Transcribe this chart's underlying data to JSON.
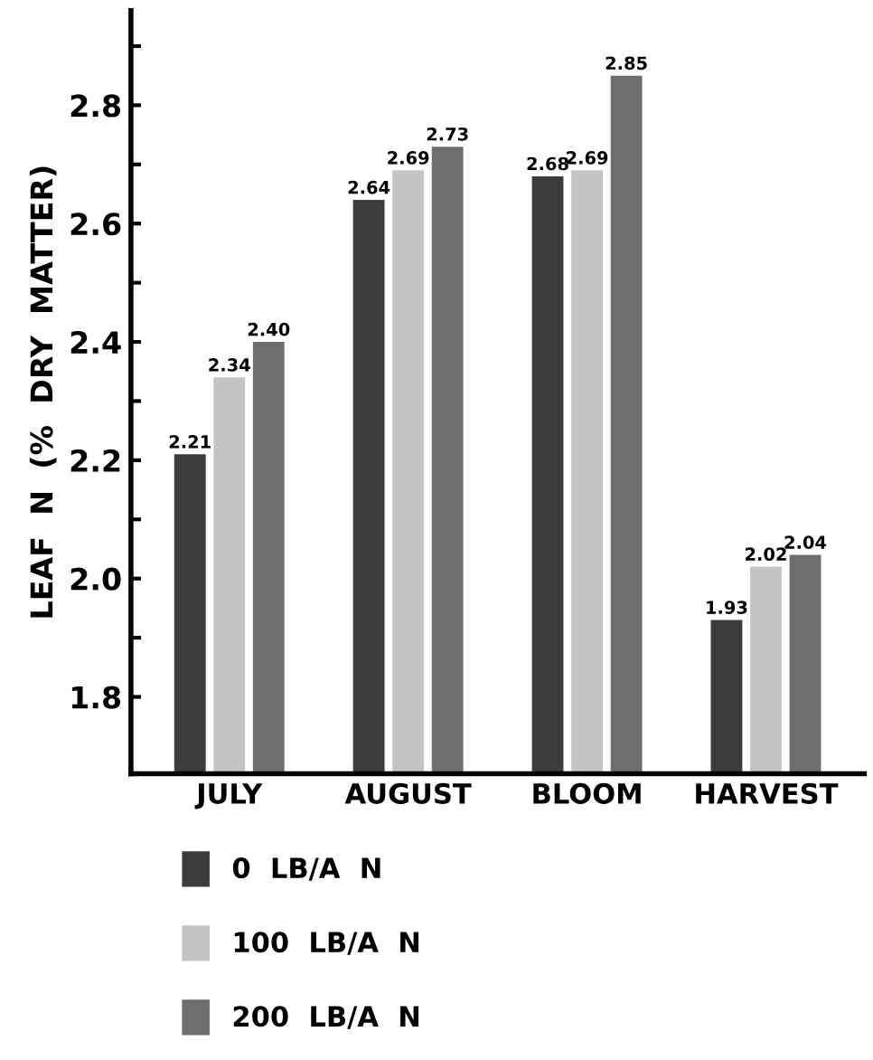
{
  "chart_data": {
    "type": "bar",
    "ylabel": "LEAF  N  (%  DRY  MATTER)",
    "categories": [
      "JULY",
      "AUGUST",
      "BLOOM",
      "HARVEST"
    ],
    "series": [
      {
        "name": "0  LB/A  N",
        "color": "#3c3c3c",
        "values": [
          2.21,
          2.64,
          2.68,
          1.93
        ],
        "value_labels": [
          "2.21",
          "2.64",
          "2.68",
          "1.93"
        ]
      },
      {
        "name": "100  LB/A  N",
        "color": "#c4c4c4",
        "values": [
          2.34,
          2.69,
          2.69,
          2.02
        ],
        "value_labels": [
          "2.34",
          "2.69",
          "2.69",
          "2.02"
        ]
      },
      {
        "name": "200  LB/A  N",
        "color": "#6e6e6e",
        "values": [
          2.4,
          2.73,
          2.85,
          2.04
        ],
        "value_labels": [
          "2.40",
          "2.73",
          "2.85",
          "2.04"
        ]
      }
    ],
    "ylim": [
      1.67,
      2.96
    ],
    "yticks": [
      1.8,
      {
        "value": 1.9,
        "label": null
      },
      {
        "value": 2.0,
        "label": "2.0"
      },
      {
        "value": 2.1,
        "label": null
      },
      2.2,
      {
        "value": 2.3,
        "label": null
      },
      2.4,
      {
        "value": 2.5,
        "label": null
      },
      2.6,
      {
        "value": 2.7,
        "label": null
      },
      2.8,
      {
        "value": 2.9,
        "label": null
      }
    ],
    "legend": "bottom",
    "grid": false
  }
}
